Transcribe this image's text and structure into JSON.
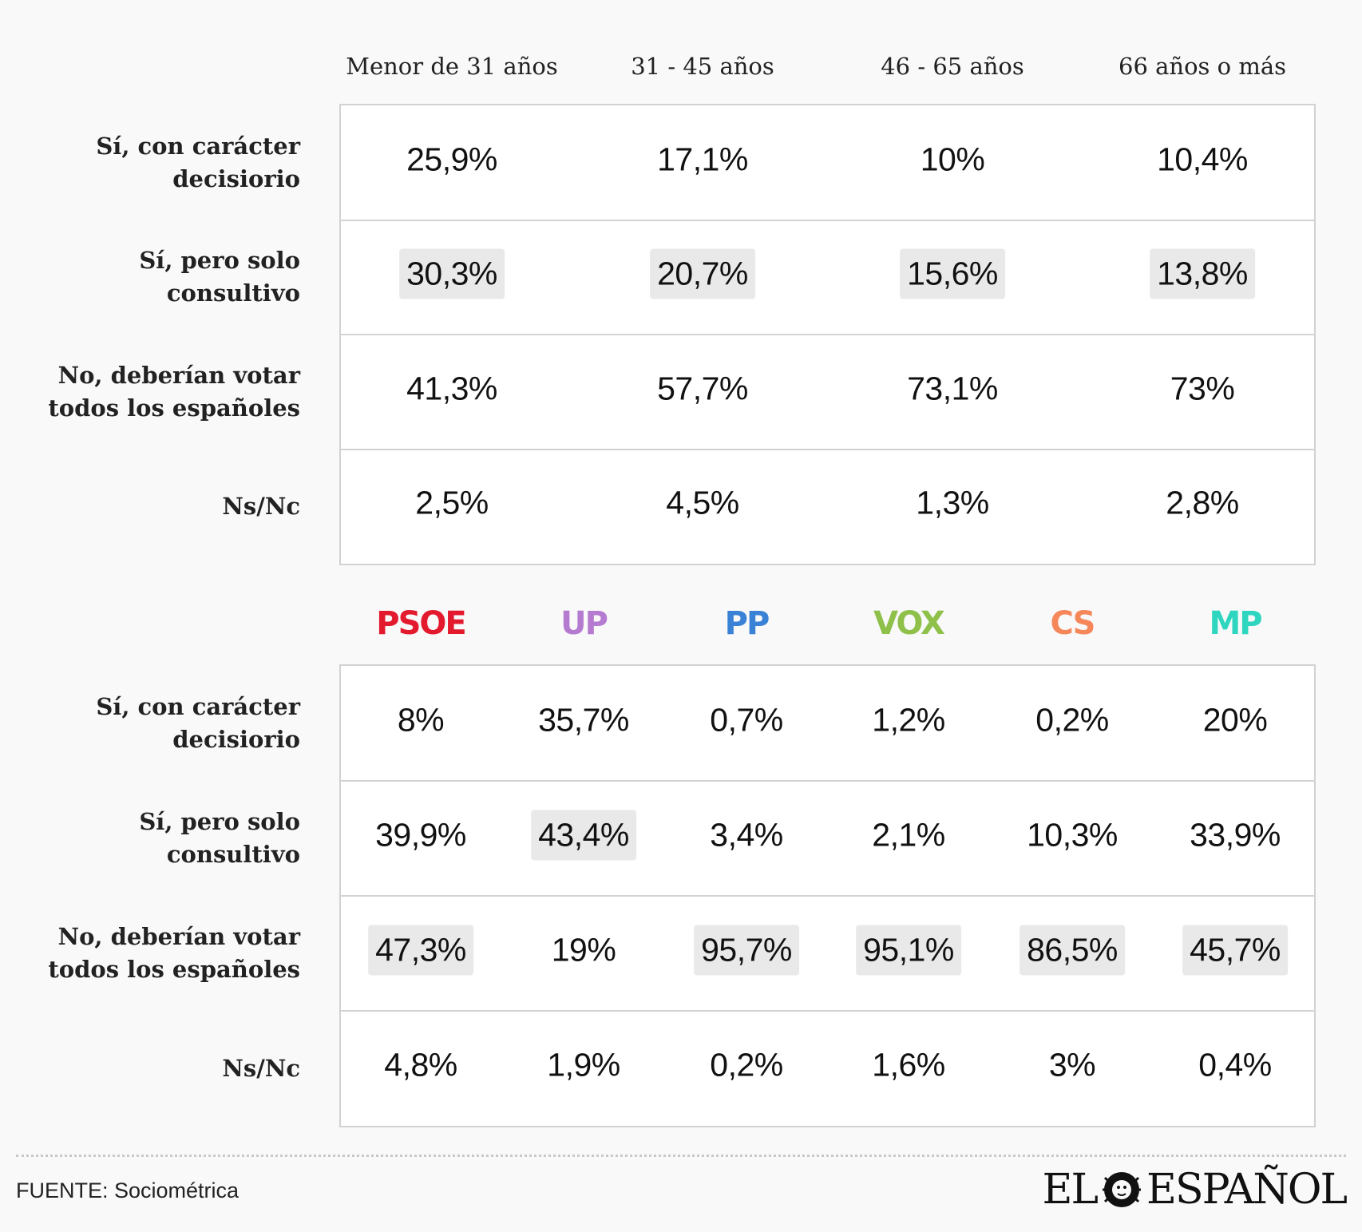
{
  "chart_data": [
    {
      "type": "table",
      "columns": [
        "Menor de 31 años",
        "31 - 45 años",
        "46 - 65 años",
        "66 años o más"
      ],
      "rows": [
        {
          "label": "Sí, con carácter decisiorio",
          "values": [
            "25,9%",
            "17,1%",
            "10%",
            "10,4%"
          ],
          "highlight": [
            false,
            false,
            false,
            false
          ]
        },
        {
          "label": "Sí, pero solo consultivo",
          "values": [
            "30,3%",
            "20,7%",
            "15,6%",
            "13,8%"
          ],
          "highlight": [
            true,
            true,
            true,
            true
          ]
        },
        {
          "label": "No, deberían votar todos los españoles",
          "values": [
            "41,3%",
            "57,7%",
            "73,1%",
            "73%"
          ],
          "highlight": [
            false,
            false,
            false,
            false
          ]
        },
        {
          "label": "Ns/Nc",
          "values": [
            "2,5%",
            "4,5%",
            "1,3%",
            "2,8%"
          ],
          "highlight": [
            false,
            false,
            false,
            false
          ]
        }
      ]
    },
    {
      "type": "table",
      "columns": [
        "PSOE",
        "UP",
        "PP",
        "VOX",
        "CS",
        "MP"
      ],
      "column_colors": [
        "#e3192e",
        "#b57bd0",
        "#3a82d6",
        "#8ec04a",
        "#f5875a",
        "#2fd6bf"
      ],
      "rows": [
        {
          "label": "Sí, con carácter decisiorio",
          "values": [
            "8%",
            "35,7%",
            "0,7%",
            "1,2%",
            "0,2%",
            "20%"
          ],
          "highlight": [
            false,
            false,
            false,
            false,
            false,
            false
          ]
        },
        {
          "label": "Sí, pero solo consultivo",
          "values": [
            "39,9%",
            "43,4%",
            "3,4%",
            "2,1%",
            "10,3%",
            "33,9%"
          ],
          "highlight": [
            false,
            true,
            false,
            false,
            false,
            false
          ]
        },
        {
          "label": "No, deberían votar todos los españoles",
          "values": [
            "47,3%",
            "19%",
            "95,7%",
            "95,1%",
            "86,5%",
            "45,7%"
          ],
          "highlight": [
            true,
            false,
            true,
            true,
            true,
            true
          ]
        },
        {
          "label": "Ns/Nc",
          "values": [
            "4,8%",
            "1,9%",
            "0,2%",
            "1,6%",
            "3%",
            "0,4%"
          ],
          "highlight": [
            false,
            false,
            false,
            false,
            false,
            false
          ]
        }
      ]
    }
  ],
  "footer": {
    "source": "FUENTE: Sociométrica",
    "logo_left": "EL",
    "logo_right": "ESPAÑOL"
  }
}
